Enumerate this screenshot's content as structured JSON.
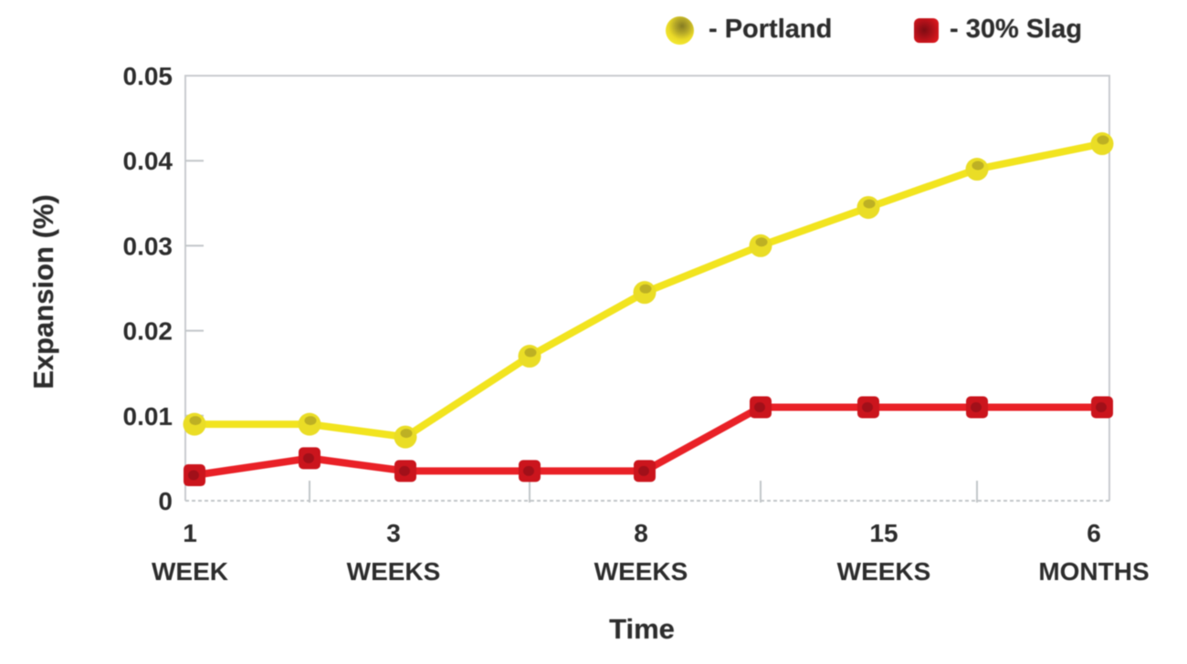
{
  "page": {
    "background": "#ffffff"
  },
  "legend": {
    "position": "top",
    "items": [
      {
        "label": "- Portland",
        "series": "Portland",
        "swatch_shape": "circle",
        "swatch_color": "#f0e426"
      },
      {
        "label": "- 30% Slag",
        "series": "30% Slag",
        "swatch_shape": "rounded-square",
        "swatch_color": "#cb151d"
      }
    ]
  },
  "chart_data": {
    "type": "line",
    "title": "",
    "xlabel": "Time",
    "ylabel": "Expansion (%)",
    "ylim": [
      0,
      0.05
    ],
    "ytick_values": [
      0,
      0.01,
      0.02,
      0.03,
      0.04,
      0.05
    ],
    "ytick_labels": [
      "0",
      "0.01",
      "0.02",
      "0.03",
      "0.04",
      "0.05"
    ],
    "n_points": 9,
    "xtick_labels": [
      {
        "point_index": 0,
        "value": "1",
        "unit": "WEEK"
      },
      {
        "point_index": 2,
        "value": "3",
        "unit": "WEEKS"
      },
      {
        "point_index": 4,
        "value": "8",
        "unit": "WEEKS"
      },
      {
        "point_index": 6,
        "value": "15",
        "unit": "WEEKS"
      },
      {
        "point_index": 8,
        "value": "6",
        "unit": "MONTHS"
      }
    ],
    "minor_tick_point_indices": [
      1,
      3,
      5,
      7
    ],
    "grid": false,
    "legend_position": "top",
    "series": [
      {
        "name": "Portland",
        "marker": "circle",
        "line_color": "#f2e41f",
        "marker_color": "#eadd26",
        "marker_shade_color": "#8f8422",
        "values": [
          0.009,
          0.009,
          0.0075,
          0.017,
          0.0245,
          0.03,
          0.0345,
          0.039,
          0.042
        ]
      },
      {
        "name": "30% Slag",
        "marker": "square",
        "line_color": "#e92127",
        "marker_color": "#cb151d",
        "marker_shade_color": "#7f0d15",
        "values": [
          0.003,
          0.005,
          0.0035,
          0.0035,
          0.0035,
          0.011,
          0.011,
          0.011,
          0.011
        ]
      }
    ],
    "axis_colors": {
      "frame": "#c9cccf",
      "ticks": "#c2c6c9",
      "text": "#2d2d2d"
    }
  }
}
